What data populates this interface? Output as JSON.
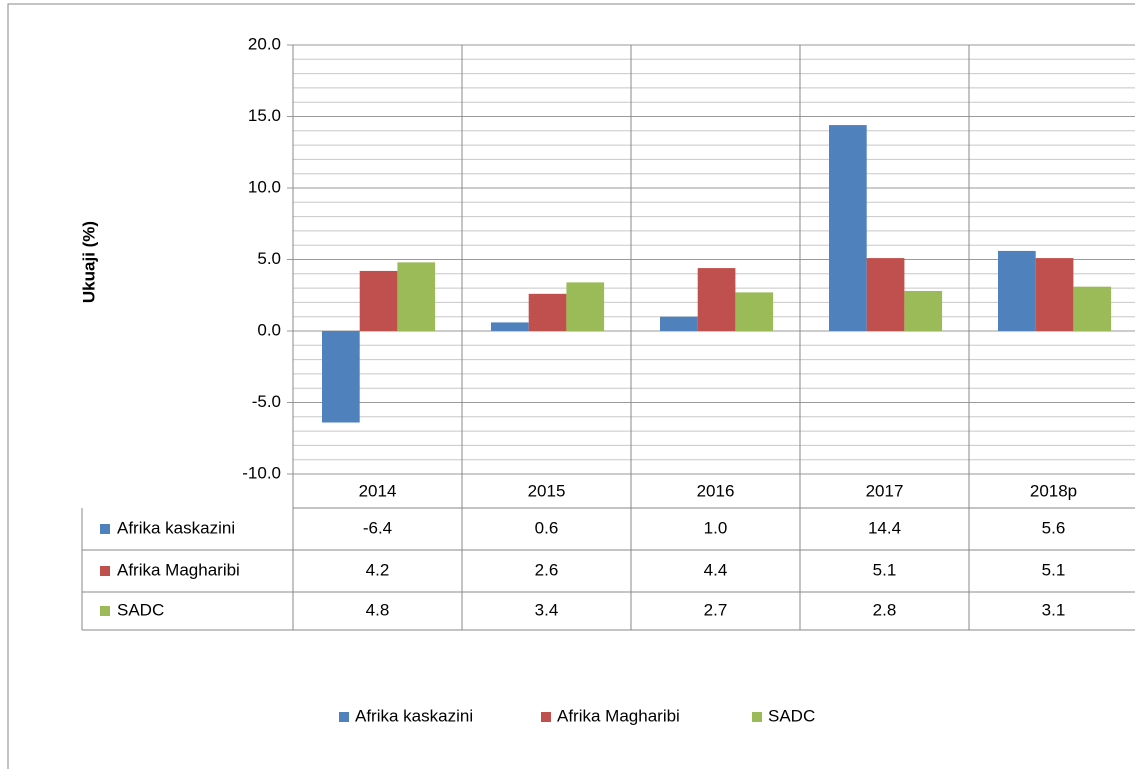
{
  "chart_data": {
    "type": "bar",
    "y_axis_label": "Ukuaji (%)",
    "categories": [
      "2014",
      "2015",
      "2016",
      "2017",
      "2018p"
    ],
    "series": [
      {
        "name": "Afrika kaskazini",
        "color": "#4f81bd",
        "values": [
          -6.4,
          0.6,
          1.0,
          14.4,
          5.6
        ],
        "value_labels": [
          "-6.4",
          "0.6",
          "1.0",
          "14.4",
          "5.6"
        ]
      },
      {
        "name": "Afrika Magharibi",
        "color": "#c0504d",
        "values": [
          4.2,
          2.6,
          4.4,
          5.1,
          5.1
        ],
        "value_labels": [
          "4.2",
          "2.6",
          "4.4",
          "5.1",
          "5.1"
        ]
      },
      {
        "name": "SADC",
        "color": "#9bbb59",
        "values": [
          4.8,
          3.4,
          2.7,
          2.8,
          3.1
        ],
        "value_labels": [
          "4.8",
          "3.4",
          "2.7",
          "2.8",
          "3.1"
        ]
      }
    ],
    "ylim": [
      -10,
      20
    ],
    "yticks": [
      {
        "value": -10,
        "label": "-10.0"
      },
      {
        "value": -5,
        "label": "-5.0"
      },
      {
        "value": 0,
        "label": "0.0"
      },
      {
        "value": 5,
        "label": "5.0"
      },
      {
        "value": 10,
        "label": "10.0"
      },
      {
        "value": 15,
        "label": "15.0"
      },
      {
        "value": 20,
        "label": "20.0"
      }
    ],
    "minor_yticks": [
      -9,
      -8,
      -7,
      -6,
      -4,
      -3,
      -2,
      -1,
      1,
      2,
      3,
      4,
      6,
      7,
      8,
      9,
      11,
      12,
      13,
      14,
      16,
      17,
      18,
      19
    ],
    "grid": true,
    "legend": "bottom",
    "data_table": true
  }
}
